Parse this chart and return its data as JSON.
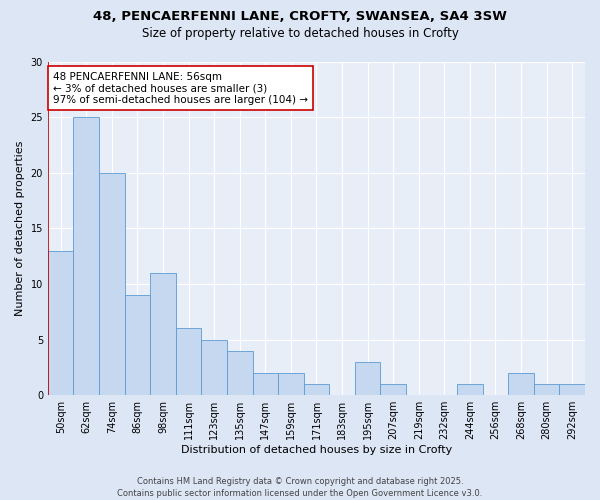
{
  "title_line1": "48, PENCAERFENNI LANE, CROFTY, SWANSEA, SA4 3SW",
  "title_line2": "Size of property relative to detached houses in Crofty",
  "xlabel": "Distribution of detached houses by size in Crofty",
  "ylabel": "Number of detached properties",
  "footnote": "Contains HM Land Registry data © Crown copyright and database right 2025.\nContains public sector information licensed under the Open Government Licence v3.0.",
  "categories": [
    "50sqm",
    "62sqm",
    "74sqm",
    "86sqm",
    "98sqm",
    "111sqm",
    "123sqm",
    "135sqm",
    "147sqm",
    "159sqm",
    "171sqm",
    "183sqm",
    "195sqm",
    "207sqm",
    "219sqm",
    "232sqm",
    "244sqm",
    "256sqm",
    "268sqm",
    "280sqm",
    "292sqm"
  ],
  "values": [
    13,
    25,
    20,
    9,
    11,
    6,
    5,
    4,
    2,
    2,
    1,
    0,
    3,
    1,
    0,
    0,
    1,
    0,
    2,
    1,
    1
  ],
  "bar_color": "#c5d8f0",
  "bar_edge_color": "#5b9bd5",
  "highlight_line_color": "#cc0000",
  "annotation_text": "48 PENCAERFENNI LANE: 56sqm\n← 3% of detached houses are smaller (3)\n97% of semi-detached houses are larger (104) →",
  "annotation_box_color": "#ffffff",
  "annotation_box_edge_color": "#cc0000",
  "ylim": [
    0,
    30
  ],
  "yticks": [
    0,
    5,
    10,
    15,
    20,
    25,
    30
  ],
  "plot_bg_color": "#e8eef8",
  "fig_bg_color": "#dde6f5",
  "grid_color": "#ffffff",
  "title_fontsize": 9.5,
  "subtitle_fontsize": 8.5,
  "axis_label_fontsize": 8,
  "tick_fontsize": 7,
  "annotation_fontsize": 7.5,
  "footnote_fontsize": 6
}
